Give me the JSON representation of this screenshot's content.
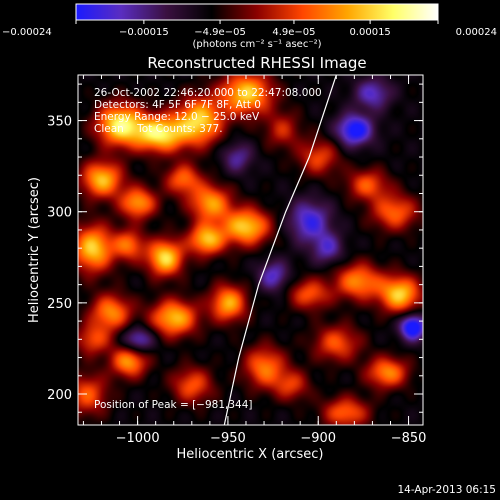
{
  "chart_data": {
    "type": "heatmap",
    "title": "Reconstructed RHESSI Image",
    "xlabel": "Heliocentric X (arcsec)",
    "ylabel": "Heliocentric Y (arcsec)",
    "xlim": [
      -1033,
      -842
    ],
    "ylim": [
      183,
      375
    ],
    "x_ticks": [
      -1000,
      -950,
      -900,
      -850
    ],
    "x_tick_labels": [
      "−1000",
      "−950",
      "−900",
      "−850"
    ],
    "y_ticks": [
      200,
      250,
      300,
      350
    ],
    "y_tick_labels": [
      "200",
      "250",
      "300",
      "350"
    ],
    "colorbar": {
      "ticks": [
        -0.00024,
        -0.00015,
        -4.9e-05,
        4.9e-05,
        0.00015,
        0.00024
      ],
      "tick_labels": [
        "−0.00024",
        "−0.00015",
        "−4.9e−05",
        "4.9e−05",
        "0.00015",
        "0.00024"
      ],
      "unit_text": "(photons cm⁻² s⁻¹ asec⁻²)",
      "range": [
        -0.00024,
        0.00024
      ],
      "colors": [
        "#1a1aff",
        "#5a2dc0",
        "#3a1040",
        "#000000",
        "#8b0000",
        "#ff4500",
        "#ffa500",
        "#ffff66",
        "#ffffff"
      ]
    },
    "annotations": [
      "26-Oct-2002 22:46:20.000 to 22:47:08.000",
      "Detectors: 4F 5F 6F 7F 8F, Att 0",
      "Energy Range: 12.0 − 25.0 keV",
      "Clean    Tot Counts: 377."
    ],
    "peak_text": "Position of Peak = [−981,344]",
    "peak_position": [
      -981,
      344
    ],
    "limb_curve": [
      [
        -952,
        183
      ],
      [
        -944,
        220
      ],
      [
        -933,
        260
      ],
      [
        -918,
        300
      ],
      [
        -905,
        330
      ],
      [
        -890,
        375
      ]
    ],
    "blobs": [
      {
        "x": -1010,
        "y": 348,
        "sx": 9,
        "sy": 8,
        "a": 1.0
      },
      {
        "x": -988,
        "y": 343,
        "sx": 10,
        "sy": 7,
        "a": 1.0
      },
      {
        "x": -966,
        "y": 350,
        "sx": 9,
        "sy": 9,
        "a": 0.9
      },
      {
        "x": -940,
        "y": 365,
        "sx": 10,
        "sy": 8,
        "a": 0.9
      },
      {
        "x": -1020,
        "y": 318,
        "sx": 8,
        "sy": 7,
        "a": 0.85
      },
      {
        "x": -1000,
        "y": 305,
        "sx": 7,
        "sy": 6,
        "a": 0.75
      },
      {
        "x": -975,
        "y": 318,
        "sx": 7,
        "sy": 6,
        "a": 0.6
      },
      {
        "x": -960,
        "y": 305,
        "sx": 8,
        "sy": 7,
        "a": 0.75
      },
      {
        "x": -1025,
        "y": 280,
        "sx": 8,
        "sy": 9,
        "a": 0.9
      },
      {
        "x": -1005,
        "y": 282,
        "sx": 6,
        "sy": 6,
        "a": 0.6
      },
      {
        "x": -985,
        "y": 275,
        "sx": 7,
        "sy": 7,
        "a": 0.95
      },
      {
        "x": -962,
        "y": 285,
        "sx": 7,
        "sy": 6,
        "a": 0.85
      },
      {
        "x": -940,
        "y": 292,
        "sx": 9,
        "sy": 7,
        "a": 0.9
      },
      {
        "x": -1015,
        "y": 245,
        "sx": 8,
        "sy": 7,
        "a": 0.7
      },
      {
        "x": -980,
        "y": 242,
        "sx": 9,
        "sy": 7,
        "a": 0.85
      },
      {
        "x": -950,
        "y": 250,
        "sx": 7,
        "sy": 7,
        "a": 0.8
      },
      {
        "x": -1005,
        "y": 218,
        "sx": 7,
        "sy": 6,
        "a": 0.75
      },
      {
        "x": -970,
        "y": 205,
        "sx": 8,
        "sy": 7,
        "a": 0.55
      },
      {
        "x": -930,
        "y": 215,
        "sx": 8,
        "sy": 8,
        "a": 0.65
      },
      {
        "x": -905,
        "y": 255,
        "sx": 8,
        "sy": 6,
        "a": 0.55
      },
      {
        "x": -878,
        "y": 262,
        "sx": 9,
        "sy": 7,
        "a": 0.7
      },
      {
        "x": -858,
        "y": 300,
        "sx": 9,
        "sy": 7,
        "a": 0.6
      },
      {
        "x": -855,
        "y": 255,
        "sx": 8,
        "sy": 7,
        "a": 0.9
      },
      {
        "x": -890,
        "y": 228,
        "sx": 9,
        "sy": 7,
        "a": 0.55
      },
      {
        "x": -862,
        "y": 212,
        "sx": 8,
        "sy": 6,
        "a": 0.7
      },
      {
        "x": -915,
        "y": 205,
        "sx": 7,
        "sy": 6,
        "a": 0.45
      },
      {
        "x": -885,
        "y": 190,
        "sx": 9,
        "sy": 6,
        "a": 0.6
      },
      {
        "x": -900,
        "y": 330,
        "sx": 8,
        "sy": 7,
        "a": 0.5
      },
      {
        "x": -873,
        "y": 315,
        "sx": 8,
        "sy": 6,
        "a": 0.55
      },
      {
        "x": -920,
        "y": 345,
        "sx": 7,
        "sy": 7,
        "a": 0.4
      },
      {
        "x": -1028,
        "y": 200,
        "sx": 8,
        "sy": 8,
        "a": 0.55
      },
      {
        "x": -1025,
        "y": 230,
        "sx": 7,
        "sy": 6,
        "a": 0.5
      },
      {
        "x": -905,
        "y": 295,
        "sx": 8,
        "sy": 8,
        "a": -0.6
      },
      {
        "x": -880,
        "y": 345,
        "sx": 7,
        "sy": 6,
        "a": -0.8
      },
      {
        "x": -848,
        "y": 237,
        "sx": 5,
        "sy": 5,
        "a": -0.9
      },
      {
        "x": -925,
        "y": 265,
        "sx": 6,
        "sy": 6,
        "a": -0.5
      },
      {
        "x": -895,
        "y": 280,
        "sx": 6,
        "sy": 6,
        "a": -0.45
      },
      {
        "x": -870,
        "y": 365,
        "sx": 7,
        "sy": 6,
        "a": -0.5
      },
      {
        "x": -1000,
        "y": 230,
        "sx": 6,
        "sy": 5,
        "a": -0.55
      },
      {
        "x": -945,
        "y": 330,
        "sx": 6,
        "sy": 6,
        "a": -0.4
      }
    ]
  },
  "footer": {
    "timestamp": "14-Apr-2013 06:15"
  }
}
